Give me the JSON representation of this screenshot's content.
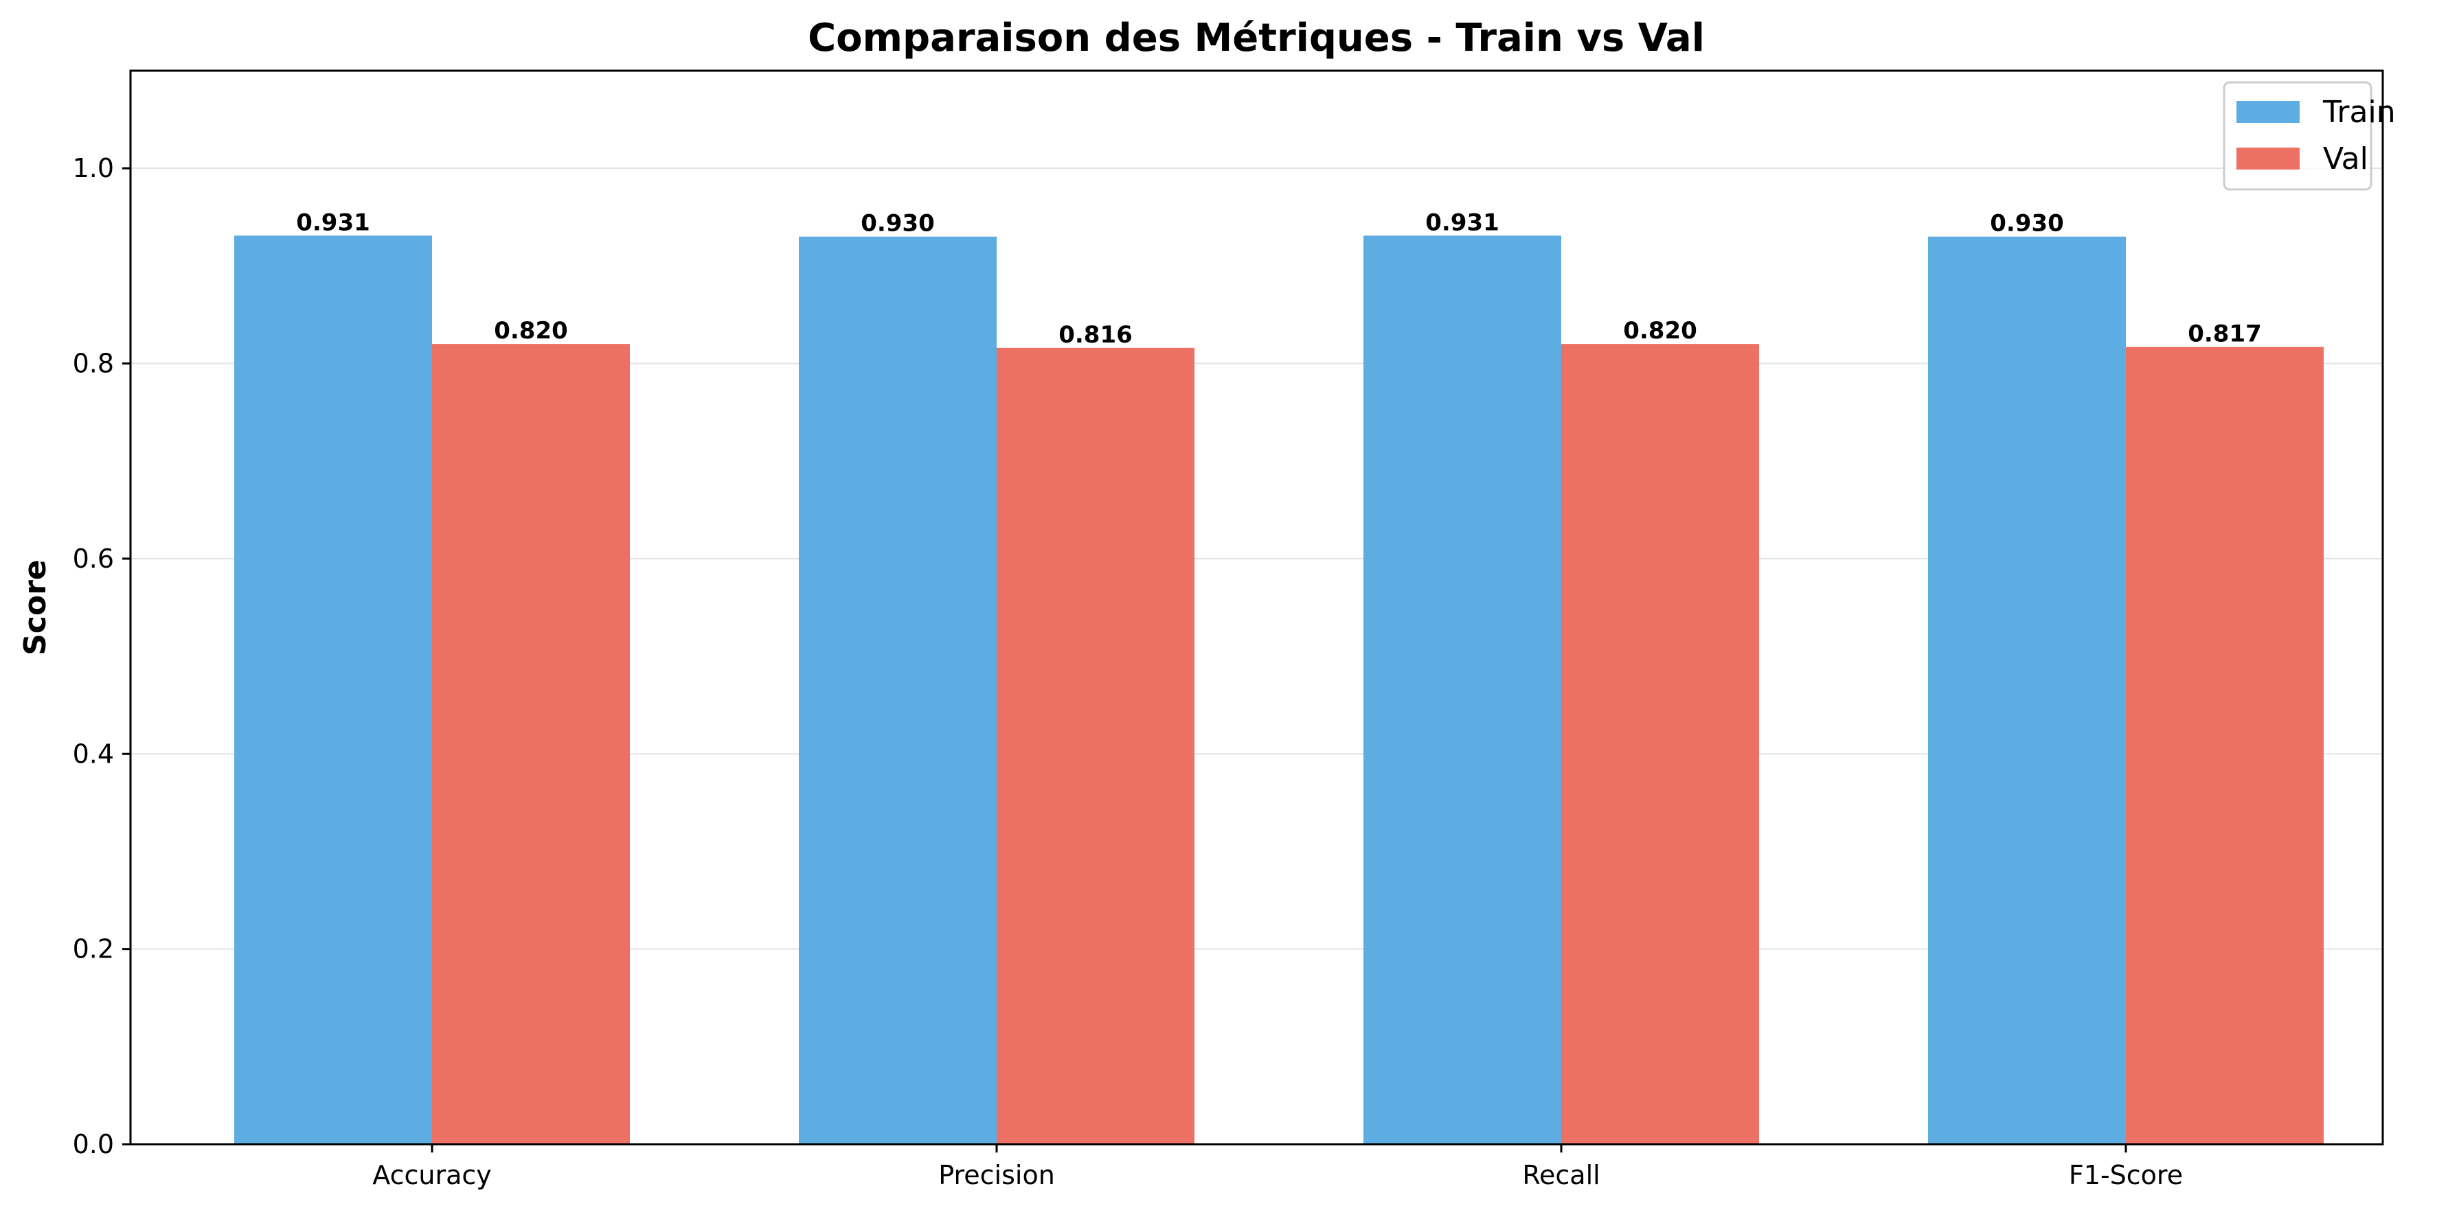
{
  "chart_data": {
    "type": "bar",
    "title": "Comparaison des Métriques - Train vs Val",
    "xlabel": "",
    "ylabel": "Score",
    "categories": [
      "Accuracy",
      "Precision",
      "Recall",
      "F1-Score"
    ],
    "series": [
      {
        "name": "Train",
        "color": "#5DADE2",
        "values": [
          0.931,
          0.93,
          0.931,
          0.93
        ],
        "labels": [
          "0.931",
          "0.930",
          "0.931",
          "0.930"
        ]
      },
      {
        "name": "Val",
        "color": "#EC7063",
        "values": [
          0.82,
          0.816,
          0.82,
          0.817
        ],
        "labels": [
          "0.820",
          "0.816",
          "0.820",
          "0.817"
        ]
      }
    ],
    "ylim": [
      0,
      1.1
    ],
    "yticks": [
      0.0,
      0.2,
      0.4,
      0.6,
      0.8,
      1.0
    ],
    "ytick_labels": [
      "0.0",
      "0.2",
      "0.4",
      "0.6",
      "0.8",
      "1.0"
    ],
    "grid": "y",
    "legend_position": "top-right"
  }
}
